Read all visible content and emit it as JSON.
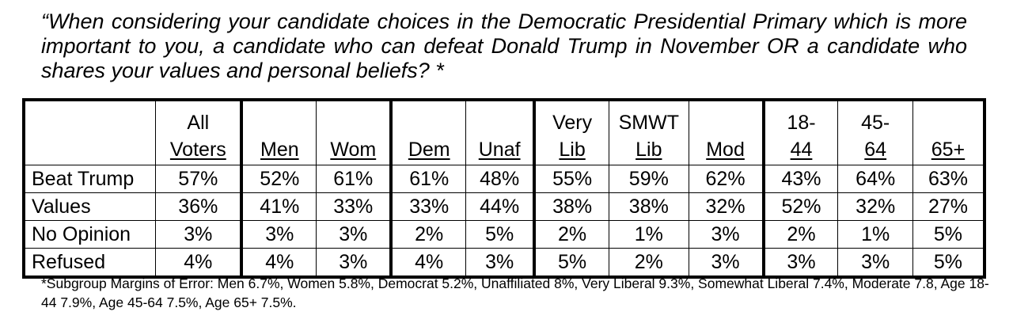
{
  "question": "“When considering your candidate choices in the Democratic Presidential Primary which is more important to you, a candidate who can defeat Donald Trump in November OR a candidate who shares your values and personal beliefs? *",
  "table": {
    "columns": [
      {
        "line1": "All",
        "line2": "Voters"
      },
      {
        "line1": "",
        "line2": "Men"
      },
      {
        "line1": "",
        "line2": "Wom"
      },
      {
        "line1": "",
        "line2": "Dem"
      },
      {
        "line1": "",
        "line2": "Unaf"
      },
      {
        "line1": "Very",
        "line2": "Lib"
      },
      {
        "line1": "SMWT",
        "line2": "Lib"
      },
      {
        "line1": "",
        "line2": "Mod"
      },
      {
        "line1": "18-",
        "line2": "44"
      },
      {
        "line1": "45-",
        "line2": "64"
      },
      {
        "line1": "",
        "line2": "65+"
      }
    ],
    "rows": [
      {
        "label": "Beat Trump",
        "values": [
          "57%",
          "52%",
          "61%",
          "61%",
          "48%",
          "55%",
          "59%",
          "62%",
          "43%",
          "64%",
          "63%"
        ]
      },
      {
        "label": "Values",
        "values": [
          "36%",
          "41%",
          "33%",
          "33%",
          "44%",
          "38%",
          "38%",
          "32%",
          "52%",
          "32%",
          "27%"
        ]
      },
      {
        "label": "No Opinion",
        "values": [
          "3%",
          "3%",
          "3%",
          "2%",
          "5%",
          "2%",
          "1%",
          "3%",
          "2%",
          "1%",
          "5%"
        ]
      },
      {
        "label": "Refused",
        "values": [
          "4%",
          "4%",
          "3%",
          "4%",
          "3%",
          "5%",
          "2%",
          "3%",
          "3%",
          "3%",
          "5%"
        ]
      }
    ]
  },
  "footnote": "*Subgroup Margins of Error: Men 6.7%, Women 5.8%, Democrat 5.2%, Unaffiliated 8%, Very Liberal 9.3%, Somewhat Liberal 7.4%, Moderate 7.8, Age 18-44 7.9%, Age 45-64 7.5%, Age 65+ 7.5%."
}
